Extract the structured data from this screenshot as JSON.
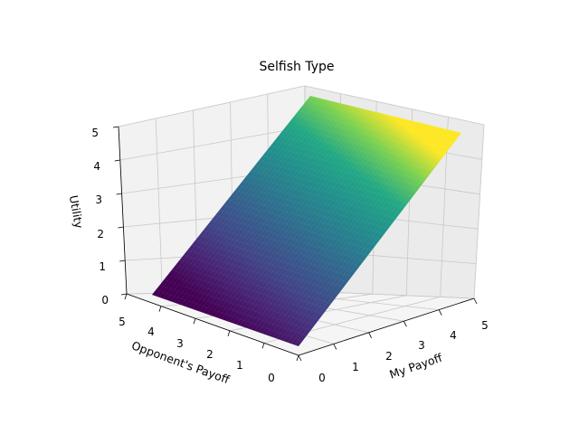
{
  "chart_data": {
    "type": "surface",
    "title": "Selfish Type",
    "xlabel": "My Payoff",
    "ylabel": "Opponent's Payoff",
    "zlabel": "Utility",
    "xlim": [
      0,
      5
    ],
    "ylim": [
      0,
      5
    ],
    "zlim": [
      0,
      5
    ],
    "x_ticks": [
      "0",
      "1",
      "2",
      "3",
      "4",
      "5"
    ],
    "y_ticks": [
      "0",
      "1",
      "2",
      "3",
      "4",
      "5"
    ],
    "z_ticks": [
      "0",
      "1",
      "2",
      "3",
      "4",
      "5"
    ],
    "surface": "z = x",
    "colormap": "viridis",
    "grid": true
  }
}
